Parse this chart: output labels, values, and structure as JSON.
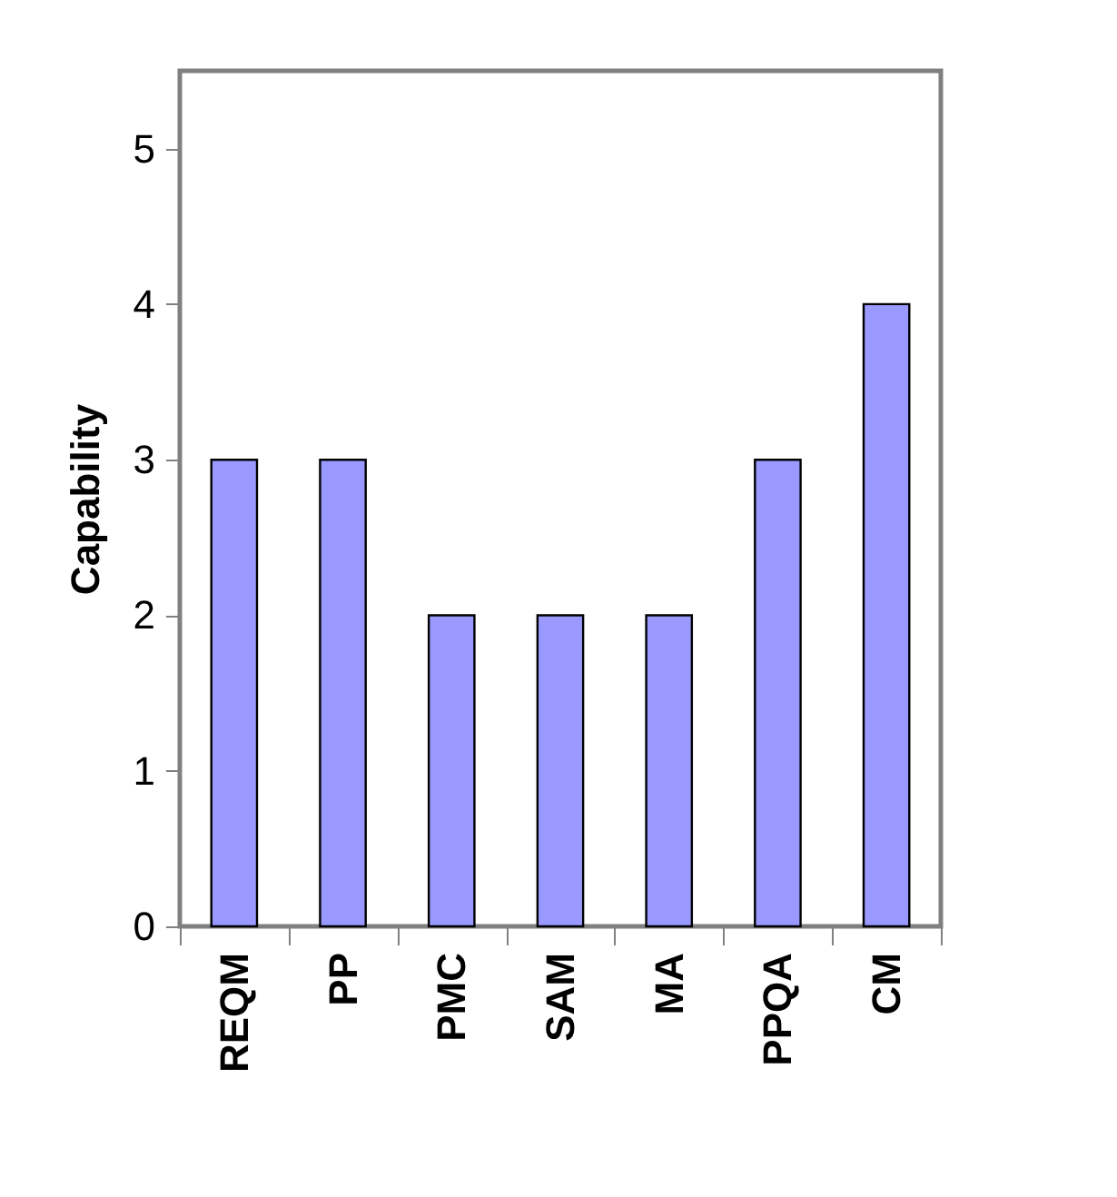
{
  "chart_data": {
    "type": "bar",
    "ylabel": "Capability",
    "categories": [
      "REQM",
      "PP",
      "PMC",
      "SAM",
      "MA",
      "PPQA",
      "CM"
    ],
    "values": [
      3,
      3,
      2,
      2,
      2,
      3,
      4
    ],
    "color": "#9999ff",
    "ylim": [
      0,
      5.5
    ],
    "yticks": [
      0,
      1,
      2,
      3,
      4,
      5
    ]
  }
}
